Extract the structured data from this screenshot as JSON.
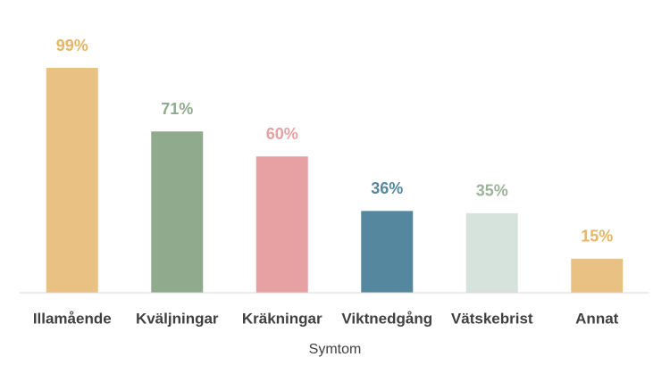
{
  "chart_data": {
    "type": "bar",
    "categories": [
      "Illamående",
      "Kväljningar",
      "Kräkningar",
      "Viktnedgång",
      "Vätskebrist",
      "Annat"
    ],
    "values": [
      99,
      71,
      60,
      36,
      35,
      15
    ],
    "value_labels": [
      "99%",
      "71%",
      "60%",
      "36%",
      "35%",
      "15%"
    ],
    "colors": [
      "#e9c283",
      "#8faa8d",
      "#e8a1a3",
      "#55879e",
      "#d6e2dc",
      "#e9c283"
    ],
    "value_label_colors": [
      "#e6b566",
      "#8faa8d",
      "#e8a1a3",
      "#55879e",
      "#9bb39a",
      "#e6b566"
    ],
    "x_label": "Symtom"
  }
}
